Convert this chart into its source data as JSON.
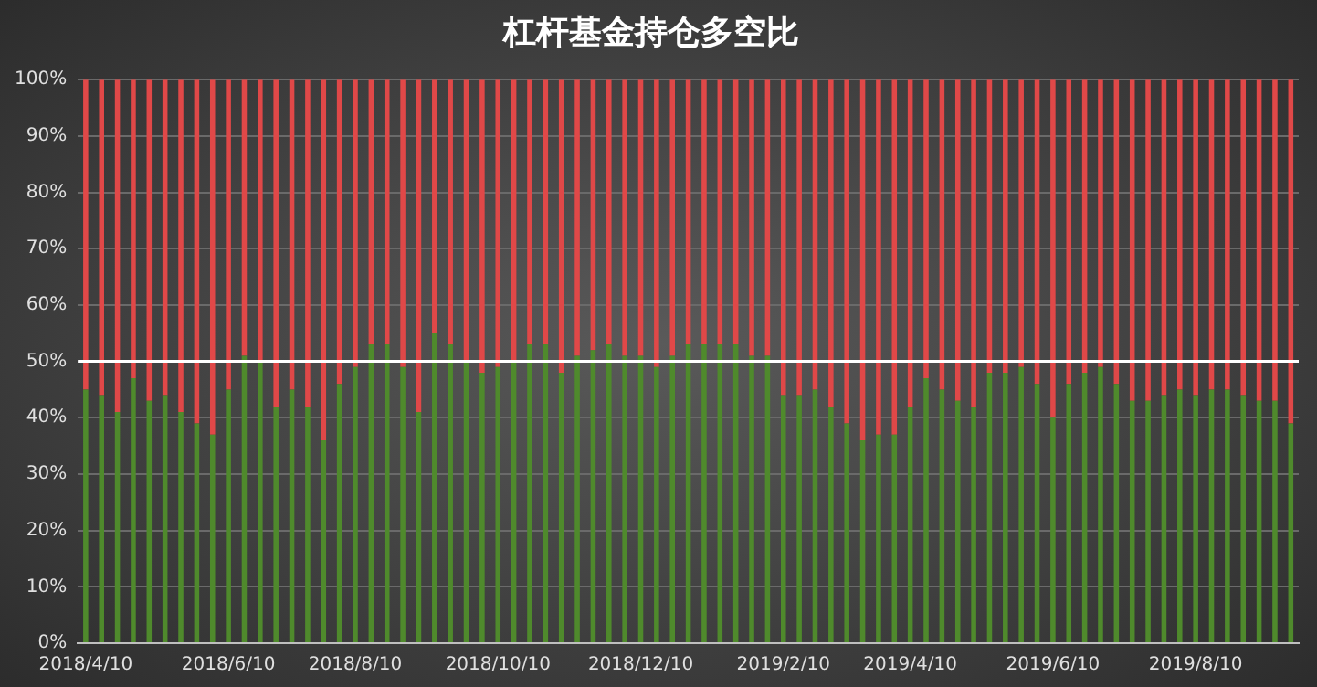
{
  "chart_data": {
    "type": "bar",
    "title": "杠杆基金持仓多空比",
    "stacked": true,
    "categories": [
      "2018/4/10",
      null,
      null,
      null,
      null,
      null,
      null,
      null,
      null,
      "2018/6/10",
      null,
      null,
      null,
      null,
      null,
      null,
      null,
      "2018/8/10",
      null,
      null,
      null,
      null,
      null,
      null,
      null,
      null,
      "2018/10/10",
      null,
      null,
      null,
      null,
      null,
      null,
      null,
      null,
      "2018/12/10",
      null,
      null,
      null,
      null,
      null,
      null,
      null,
      null,
      "2019/2/10",
      null,
      null,
      null,
      null,
      null,
      null,
      null,
      "2019/4/10",
      null,
      null,
      null,
      null,
      null,
      null,
      null,
      null,
      "2019/6/10",
      null,
      null,
      null,
      null,
      null,
      null,
      null,
      null,
      "2019/8/10",
      null,
      null,
      null,
      null,
      null,
      null
    ],
    "series": [
      {
        "color": "#4f8a2c",
        "values": [
          45,
          44,
          41,
          47,
          43,
          44,
          41,
          39,
          37,
          45,
          51,
          50,
          42,
          45,
          42,
          36,
          46,
          49,
          53,
          53,
          49,
          41,
          55,
          53,
          50,
          48,
          49,
          50,
          53,
          53,
          48,
          51,
          52,
          53,
          51,
          51,
          49,
          51,
          53,
          53,
          53,
          53,
          51,
          51,
          44,
          44,
          45,
          42,
          39,
          36,
          37,
          37,
          42,
          47,
          45,
          43,
          42,
          48,
          48,
          49,
          46,
          40,
          46,
          48,
          49,
          46,
          43,
          43,
          44,
          45,
          44,
          45,
          45,
          44,
          43,
          43,
          39
        ]
      },
      {
        "color": "#e04848",
        "values": [
          55,
          56,
          59,
          53,
          57,
          56,
          59,
          61,
          63,
          55,
          49,
          50,
          58,
          55,
          58,
          64,
          54,
          51,
          47,
          47,
          51,
          59,
          45,
          47,
          50,
          52,
          51,
          50,
          47,
          47,
          52,
          49,
          48,
          47,
          49,
          49,
          51,
          49,
          47,
          47,
          47,
          47,
          49,
          49,
          56,
          56,
          55,
          58,
          61,
          64,
          63,
          63,
          58,
          53,
          55,
          57,
          58,
          52,
          52,
          51,
          54,
          60,
          54,
          52,
          51,
          54,
          57,
          57,
          56,
          55,
          56,
          55,
          55,
          56,
          57,
          57,
          61
        ]
      }
    ],
    "ylim": [
      0,
      100
    ],
    "yticks": [
      {
        "value": 0,
        "label": "0%"
      },
      {
        "value": 10,
        "label": "10%"
      },
      {
        "value": 20,
        "label": "20%"
      },
      {
        "value": 30,
        "label": "30%"
      },
      {
        "value": 40,
        "label": "40%"
      },
      {
        "value": 50,
        "label": "50%"
      },
      {
        "value": 60,
        "label": "60%"
      },
      {
        "value": 70,
        "label": "70%"
      },
      {
        "value": 80,
        "label": "80%"
      },
      {
        "value": 90,
        "label": "90%"
      },
      {
        "value": 100,
        "label": "100%"
      }
    ],
    "grid": "y",
    "legend": false,
    "ref_lines": [
      {
        "axis": "y",
        "value": 50,
        "color": "#ffffff"
      }
    ]
  }
}
